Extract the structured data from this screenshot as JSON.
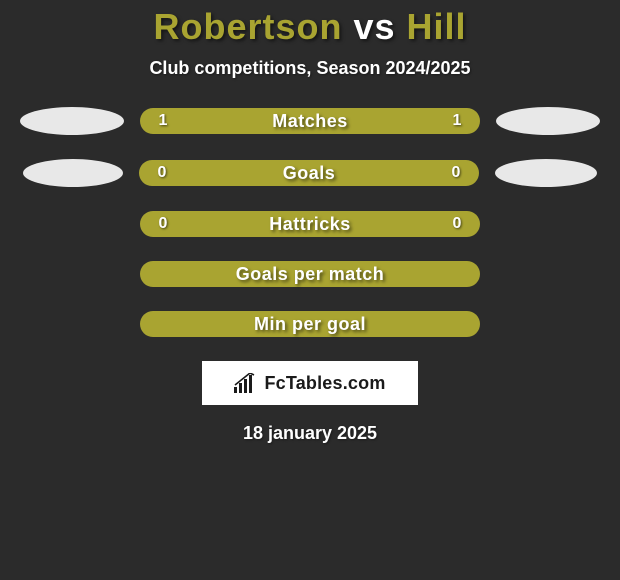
{
  "background_color": "#2b2b2b",
  "title": {
    "player1": "Robertson",
    "vs": " vs ",
    "player2": "Hill",
    "player1_color": "#a9a431",
    "vs_color": "#ffffff",
    "player2_color": "#a9a431",
    "fontsize": 36
  },
  "subtitle": {
    "text": "Club competitions, Season 2024/2025",
    "color": "#ffffff",
    "fontsize": 18
  },
  "placeholder_color": "#e8e8e8",
  "rows": [
    {
      "label": "Matches",
      "left": "1",
      "right": "1",
      "bar_color": "#a9a431",
      "show_left_placeholder": true,
      "show_right_placeholder": true,
      "left_ph_width": 104,
      "right_ph_width": 104
    },
    {
      "label": "Goals",
      "left": "0",
      "right": "0",
      "bar_color": "#a9a431",
      "show_left_placeholder": true,
      "show_right_placeholder": true,
      "left_ph_width": 100,
      "right_ph_width": 102
    },
    {
      "label": "Hattricks",
      "left": "0",
      "right": "0",
      "bar_color": "#a9a431",
      "show_left_placeholder": false,
      "show_right_placeholder": false
    },
    {
      "label": "Goals per match",
      "left": "",
      "right": "",
      "bar_color": "#a9a431",
      "show_left_placeholder": false,
      "show_right_placeholder": false
    },
    {
      "label": "Min per goal",
      "left": "",
      "right": "",
      "bar_color": "#a9a431",
      "show_left_placeholder": false,
      "show_right_placeholder": false
    }
  ],
  "logo": {
    "text": "FcTables.com",
    "background": "#ffffff",
    "text_color": "#1a1a1a",
    "icon_color": "#1a1a1a"
  },
  "date": {
    "text": "18 january 2025",
    "color": "#ffffff",
    "fontsize": 18
  }
}
